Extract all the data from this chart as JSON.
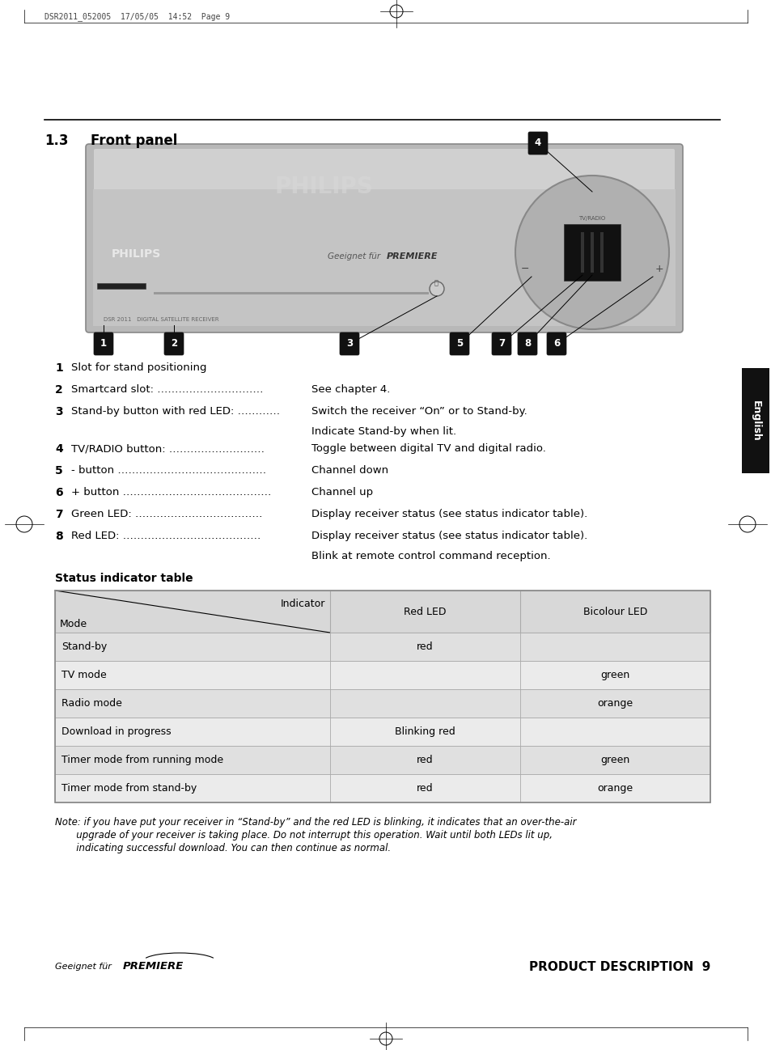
{
  "page_header": "DSR2011_052005  17/05/05  14:52  Page 9",
  "section_title_num": "1.3",
  "section_title_text": "Front panel",
  "sidebar_text": "English",
  "items": [
    {
      "num": "1",
      "label": "Slot for stand positioning",
      "dots": "",
      "desc1": "",
      "desc2": ""
    },
    {
      "num": "2",
      "label": "Smartcard slot:",
      "dots": " …………………………",
      "desc1": "See chapter 4.",
      "desc2": ""
    },
    {
      "num": "3",
      "label": "Stand-by button with red LED:",
      "dots": " …………",
      "desc1": "Switch the receiver “On” or to Stand-by.",
      "desc2": "Indicate Stand-by when lit."
    },
    {
      "num": "4",
      "label": "TV/RADIO button:",
      "dots": " ………………………",
      "desc1": "Toggle between digital TV and digital radio.",
      "desc2": ""
    },
    {
      "num": "5",
      "label": "- button",
      "dots": " ……………………………………",
      "desc1": "Channel down",
      "desc2": ""
    },
    {
      "num": "6",
      "label": "+ button",
      "dots": " ……………………………………",
      "desc1": "Channel up",
      "desc2": ""
    },
    {
      "num": "7",
      "label": "Green LED:",
      "dots": " ………………………………",
      "desc1": "Display receiver status (see status indicator table).",
      "desc2": ""
    },
    {
      "num": "8",
      "label": "Red LED:",
      "dots": " …………………………………",
      "desc1": "Display receiver status (see status indicator table).",
      "desc2": "Blink at remote control command reception."
    }
  ],
  "table_title": "Status indicator table",
  "table_rows": [
    [
      "Stand-by",
      "red",
      ""
    ],
    [
      "TV mode",
      "",
      "green"
    ],
    [
      "Radio mode",
      "",
      "orange"
    ],
    [
      "Download in progress",
      "Blinking red",
      ""
    ],
    [
      "Timer mode from running mode",
      "red",
      "green"
    ],
    [
      "Timer mode from stand-by",
      "red",
      "orange"
    ]
  ],
  "note_line1": "Note: if you have put your receiver in “Stand-by” and the red LED is blinking, it indicates that an over-the-air",
  "note_line2": "       upgrade of your receiver is taking place. Do not interrupt this operation. Wait until both LEDs lit up,",
  "note_line3": "       indicating successful download. You can then continue as normal.",
  "footer_left1": "Geeignet für",
  "footer_left2": "PREMIERE",
  "footer_right": "PRODUCT DESCRIPTION  9",
  "bg_color": "#ffffff"
}
